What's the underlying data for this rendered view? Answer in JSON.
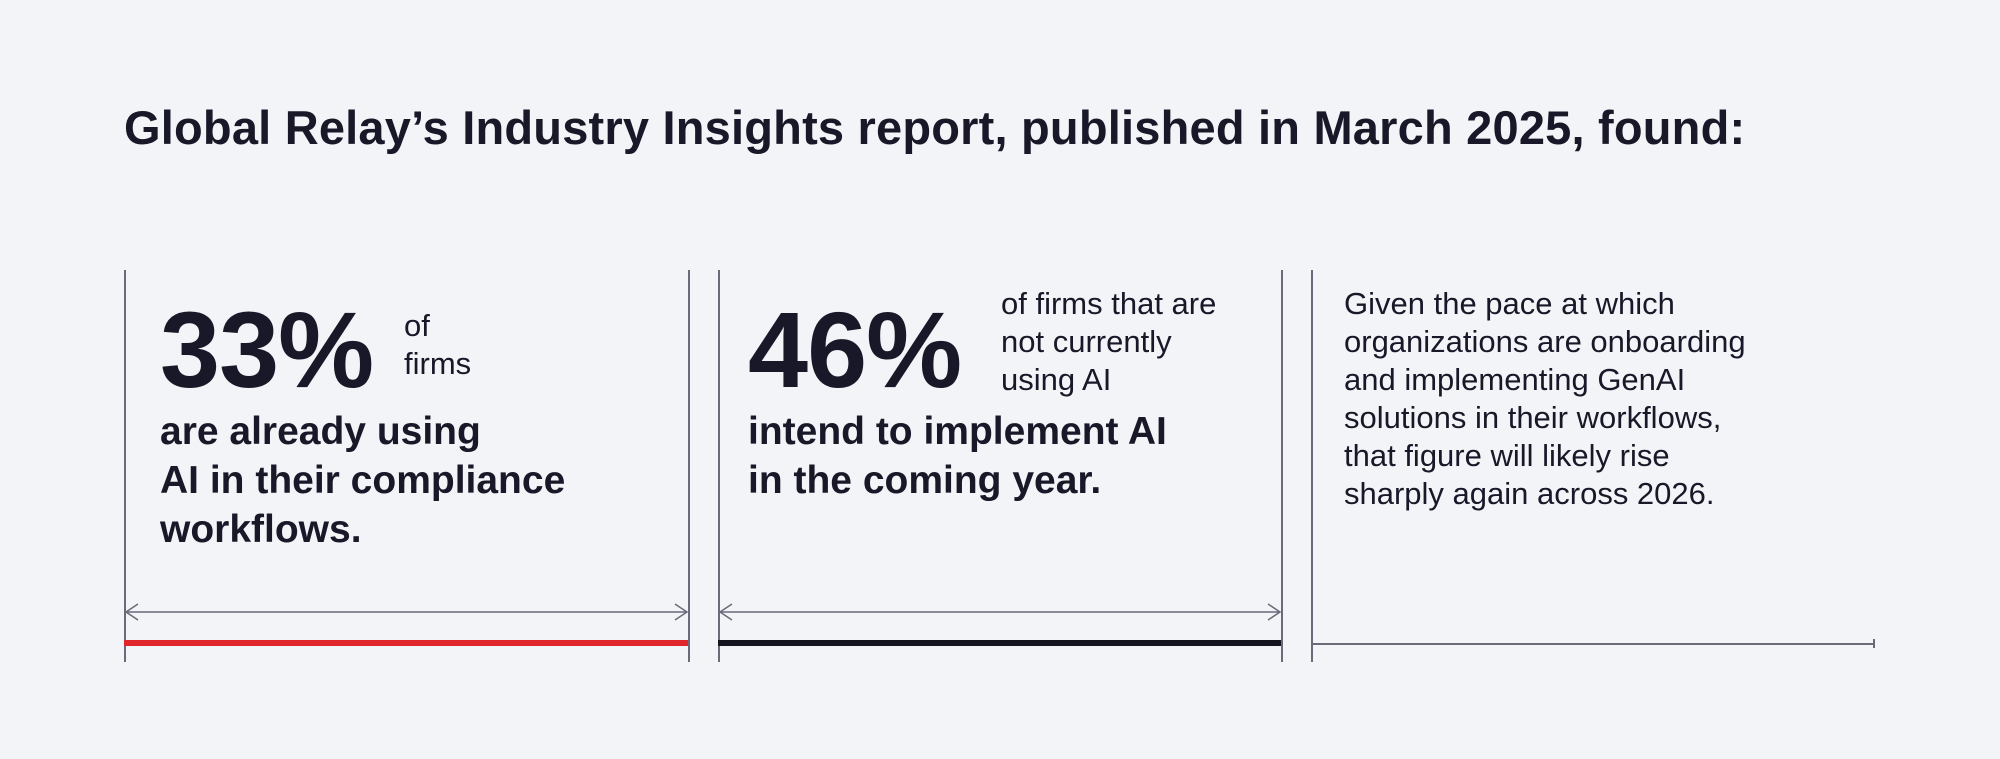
{
  "title": "Global Relay’s Industry Insights report, published in March 2025, found:",
  "stats": [
    {
      "value": "33%",
      "suffix": "of\nfirms",
      "detail": "are already using\nAI in their compliance\nworkflows.",
      "bar_color": "#e0262d",
      "arrow_icon": "double-arrow-icon"
    },
    {
      "value": "46%",
      "suffix": "of firms that are\nnot currently\nusing AI",
      "detail": "intend to implement AI\nin the coming year.",
      "bar_color": "#15151f",
      "arrow_icon": "double-arrow-icon"
    }
  ],
  "note": "Given the pace at which\norganizations are onboarding\nand implementing GenAI\nsolutions in their workflows,\nthat figure will likely rise\nsharply again across 2026.",
  "colors": {
    "background": "#f3f4f8",
    "text": "#181828",
    "rule": "#6a6a78"
  }
}
